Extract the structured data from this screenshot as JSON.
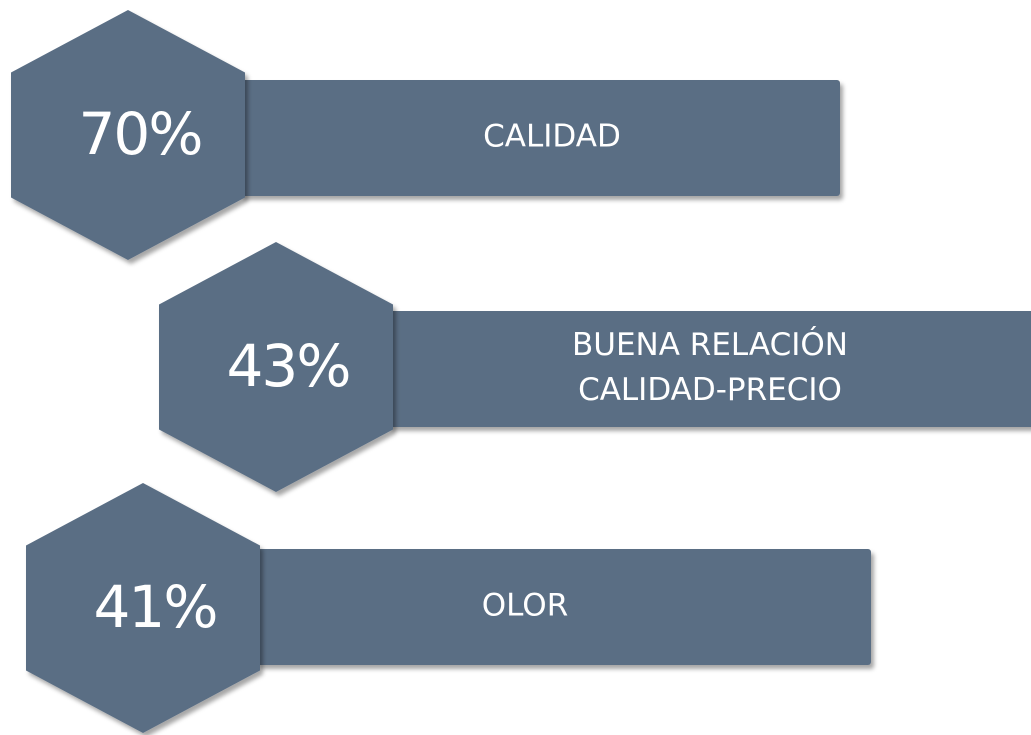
{
  "items": [
    {
      "value": "70%",
      "label": [
        "CALIDAD"
      ]
    },
    {
      "value": "43%",
      "label": [
        "BUENA RELACIÓN",
        "CALIDAD-PRECIO"
      ]
    },
    {
      "value": "41%",
      "label": [
        "OLOR"
      ]
    }
  ]
}
